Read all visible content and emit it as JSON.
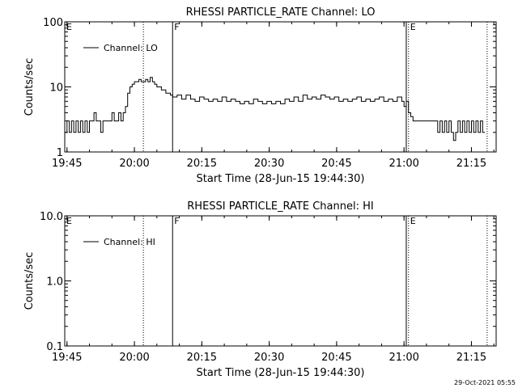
{
  "footer": {
    "timestamp": "29-Oct-2021 05:55"
  },
  "markers": [
    {
      "label": "E",
      "time_min": 0,
      "style": "dotted",
      "show_label": true
    },
    {
      "label": "",
      "time_min": 17.5,
      "style": "dotted",
      "show_label": false
    },
    {
      "label": "F",
      "time_min": 24.0,
      "style": "solid",
      "show_label": true
    },
    {
      "label": "",
      "time_min": 76.0,
      "style": "solid",
      "show_label": false
    },
    {
      "label": "E",
      "time_min": 76.5,
      "style": "dotted",
      "show_label": true
    },
    {
      "label": "",
      "time_min": 94.0,
      "style": "dotted",
      "show_label": false
    }
  ],
  "chart_data": [
    {
      "type": "line",
      "title": "RHESSI PARTICLE_RATE Channel: LO",
      "xlabel": "Start Time (28-Jun-15 19:44:30)",
      "ylabel": "Counts/sec",
      "x_start": "19:44:30",
      "xlim_min": [
        0,
        96
      ],
      "xticks": [
        {
          "t": 0.5,
          "label": "19:45"
        },
        {
          "t": 15.5,
          "label": "20:00"
        },
        {
          "t": 30.5,
          "label": "20:15"
        },
        {
          "t": 45.5,
          "label": "20:30"
        },
        {
          "t": 60.5,
          "label": "20:45"
        },
        {
          "t": 75.5,
          "label": "21:00"
        },
        {
          "t": 90.5,
          "label": "21:15"
        }
      ],
      "yscale": "log",
      "ylim": [
        1,
        100
      ],
      "yticks": [
        {
          "v": 1,
          "label": "1"
        },
        {
          "v": 10,
          "label": "10"
        },
        {
          "v": 100,
          "label": "100"
        }
      ],
      "legend": {
        "label": "Channel: LO",
        "position": "top-left"
      },
      "series": [
        {
          "name": "Channel: LO",
          "x": [
            0,
            0.5,
            1,
            1.5,
            2,
            2.5,
            3,
            3.5,
            4,
            4.5,
            5,
            5.5,
            6,
            6.5,
            7,
            7.5,
            8,
            8.5,
            9,
            9.5,
            10,
            10.5,
            11,
            11.5,
            12,
            12.5,
            13,
            13.5,
            14,
            14.5,
            15,
            15.5,
            16,
            16.5,
            17,
            17.5,
            18,
            18.5,
            19,
            19.5,
            20,
            20.5,
            21,
            21.5,
            22,
            22.5,
            23,
            23.5,
            24,
            25,
            26,
            27,
            28,
            29,
            30,
            31,
            32,
            33,
            34,
            35,
            36,
            37,
            38,
            39,
            40,
            41,
            42,
            43,
            44,
            45,
            46,
            47,
            48,
            49,
            50,
            51,
            52,
            53,
            54,
            55,
            56,
            57,
            58,
            59,
            60,
            61,
            62,
            63,
            64,
            65,
            66,
            67,
            68,
            69,
            70,
            71,
            72,
            73,
            74,
            75,
            75.5,
            76,
            76.5,
            77,
            77.5,
            78,
            78.5,
            79,
            79.5,
            80,
            80.5,
            81,
            81.5,
            82,
            82.5,
            83,
            83.5,
            84,
            84.5,
            85,
            85.5,
            86,
            86.5,
            87,
            87.5,
            88,
            88.5,
            89,
            89.5,
            90,
            90.5,
            91,
            91.5,
            92,
            92.5,
            93
          ],
          "y": [
            2,
            3,
            2,
            3,
            2,
            3,
            2,
            3,
            2,
            3,
            2,
            3,
            3,
            4,
            3,
            3,
            2,
            3,
            3,
            3,
            3,
            4,
            3,
            3,
            4,
            3,
            4,
            5,
            8,
            10,
            11,
            12,
            12,
            13,
            12,
            12,
            13,
            12,
            14,
            12,
            11,
            10,
            10,
            9,
            9,
            8,
            8,
            7.5,
            7,
            7.5,
            6.5,
            7.5,
            6.5,
            6,
            7,
            6.5,
            6,
            6.5,
            6,
            7,
            6,
            6.5,
            6,
            5.5,
            6,
            5.5,
            6.5,
            6,
            5.5,
            6,
            5.5,
            6,
            5.5,
            6.5,
            6,
            7,
            6,
            7.5,
            6.5,
            7,
            6.5,
            7.5,
            7,
            6.5,
            7,
            6,
            6.5,
            6,
            6.5,
            7,
            6,
            6.5,
            6,
            6.5,
            7,
            6,
            6.5,
            6,
            7,
            6,
            5,
            6,
            4,
            3.5,
            3,
            3,
            3,
            3,
            3,
            3,
            3,
            3,
            3,
            3,
            3,
            2,
            3,
            2,
            3,
            2,
            3,
            2,
            1.5,
            2,
            3,
            2,
            3,
            2,
            3,
            2,
            3,
            2,
            3,
            2,
            3,
            2
          ]
        }
      ]
    },
    {
      "type": "line",
      "title": "RHESSI PARTICLE_RATE Channel: HI",
      "xlabel": "Start Time (28-Jun-15 19:44:30)",
      "ylabel": "Counts/sec",
      "x_start": "19:44:30",
      "xlim_min": [
        0,
        96
      ],
      "xticks": [
        {
          "t": 0.5,
          "label": "19:45"
        },
        {
          "t": 15.5,
          "label": "20:00"
        },
        {
          "t": 30.5,
          "label": "20:15"
        },
        {
          "t": 45.5,
          "label": "20:30"
        },
        {
          "t": 60.5,
          "label": "20:45"
        },
        {
          "t": 75.5,
          "label": "21:00"
        },
        {
          "t": 90.5,
          "label": "21:15"
        }
      ],
      "yscale": "log",
      "ylim": [
        0.1,
        10
      ],
      "yticks": [
        {
          "v": 0.1,
          "label": "0.1"
        },
        {
          "v": 1,
          "label": "1.0"
        },
        {
          "v": 10,
          "label": "10.0"
        }
      ],
      "legend": {
        "label": "Channel: HI",
        "position": "top-left"
      },
      "series": [
        {
          "name": "Channel: HI",
          "x": [],
          "y": []
        }
      ]
    }
  ]
}
